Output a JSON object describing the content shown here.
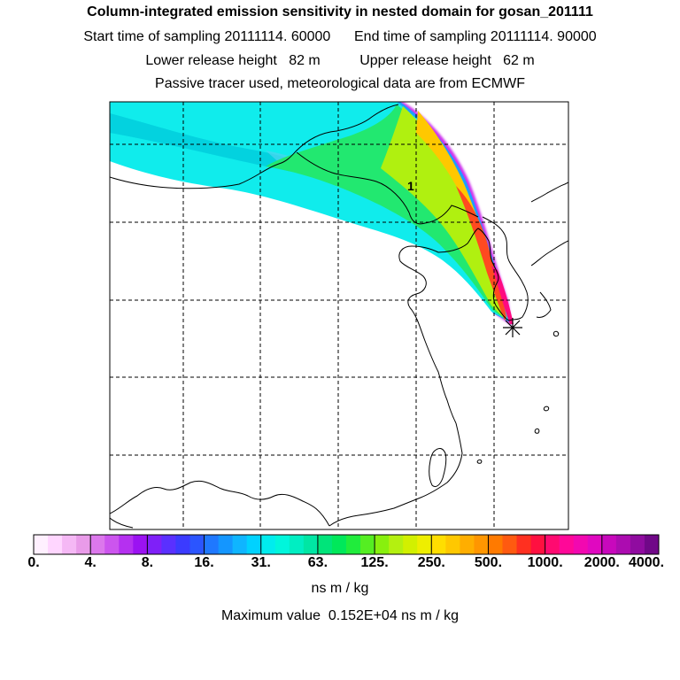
{
  "header": {
    "title": "Column-integrated emission sensitivity in nested domain for gosan_201111",
    "start_label": "Start time of sampling 20111114. 60000",
    "end_label": "End time of sampling 20111114. 90000",
    "lower_label": "Lower release height   82 m",
    "upper_label": "Upper release height   62 m",
    "info": "Passive tracer used, meteorological data are from ECMWF"
  },
  "map": {
    "plume_label": "1"
  },
  "colorbar": {
    "tick_labels": [
      "0.",
      "4.",
      "8.",
      "16.",
      "31.",
      "63.",
      "125.",
      "250.",
      "500.",
      "1000.",
      "2000.",
      "4000."
    ],
    "colors": [
      "#fff0ff",
      "#ffd6ff",
      "#f5b8f5",
      "#e99be9",
      "#dc78ec",
      "#cc55ee",
      "#b530f0",
      "#9b12f2",
      "#7f20f8",
      "#5a30ff",
      "#3b3bff",
      "#2b55ff",
      "#1f78ff",
      "#1496ff",
      "#0fb5ff",
      "#00d2ff",
      "#00ecee",
      "#00f6dc",
      "#00eec2",
      "#00e6a4",
      "#00e47a",
      "#00e85a",
      "#20ec3c",
      "#55ee22",
      "#88f00e",
      "#b4f010",
      "#d2f000",
      "#eeee00",
      "#ffde00",
      "#ffc800",
      "#ffae00",
      "#ff9600",
      "#ff7a00",
      "#ff5a10",
      "#ff3020",
      "#ff1040",
      "#ff0a70",
      "#ff0898",
      "#f208b0",
      "#e008c0",
      "#c808bc",
      "#ac0cb0",
      "#900ca0",
      "#700888"
    ],
    "units": "ns m / kg",
    "max_value_text": "Maximum value  0.152E+04 ns m / kg"
  }
}
